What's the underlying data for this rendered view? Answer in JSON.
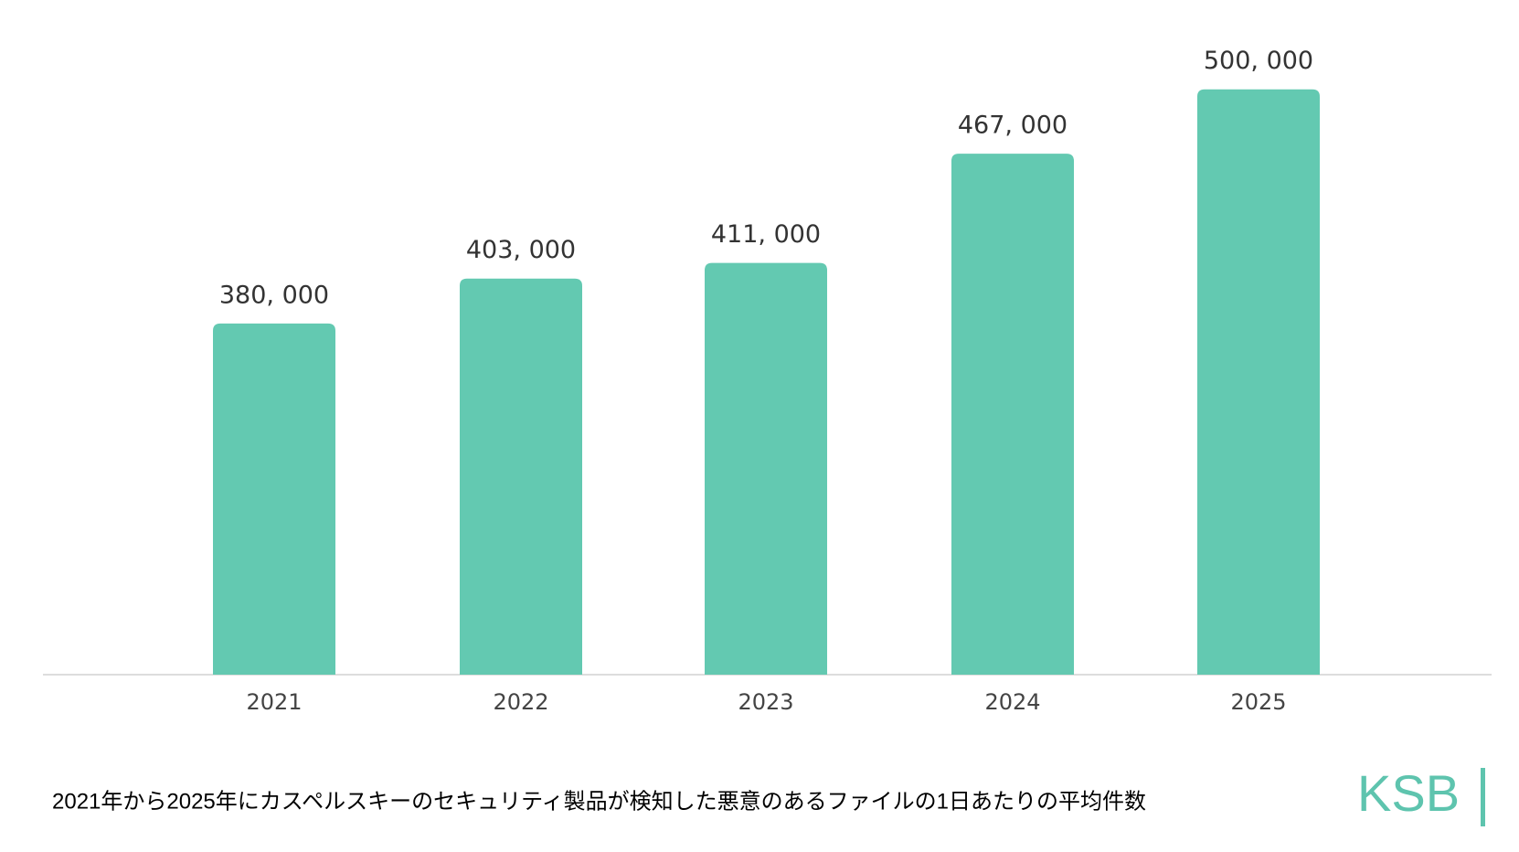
{
  "chart_data": {
    "type": "bar",
    "categories": [
      "2021",
      "2022",
      "2023",
      "2024",
      "2025"
    ],
    "values": [
      380000,
      403000,
      411000,
      467000,
      500000
    ],
    "value_labels": [
      "380, 000",
      "403, 000",
      "411, 000",
      "467, 000",
      "500, 000"
    ],
    "color": "#63c9b1",
    "ylim": [
      200000,
      520000
    ],
    "caption": "2021年から2025年にカスペルスキーのセキュリティ製品が検知した悪意のあるファイルの1日あたりの平均件数",
    "logo": "KSB"
  }
}
